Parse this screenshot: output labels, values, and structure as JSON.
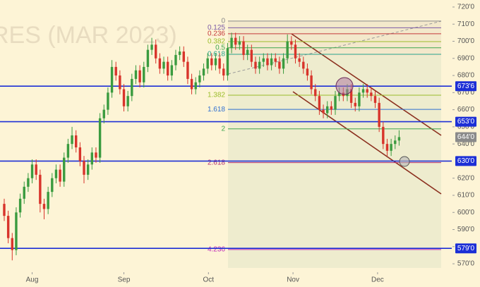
{
  "chart_data": {
    "type": "candlestick",
    "watermark": "RES (MAR 2023)",
    "ylim": [
      565.5,
      724.1
    ],
    "yticks": [
      {
        "value": 720,
        "label": "720'0"
      },
      {
        "value": 710,
        "label": "710'0"
      },
      {
        "value": 700,
        "label": "700'0"
      },
      {
        "value": 690,
        "label": "690'0"
      },
      {
        "value": 680,
        "label": "680'0"
      },
      {
        "value": 670,
        "label": "670'0"
      },
      {
        "value": 660,
        "label": "660'0"
      },
      {
        "value": 650,
        "label": "650'0"
      },
      {
        "value": 640,
        "label": "640'0"
      },
      {
        "value": 620,
        "label": "620'0"
      },
      {
        "value": 610,
        "label": "610'0"
      },
      {
        "value": 600,
        "label": "600'0"
      },
      {
        "value": 590,
        "label": "590'0"
      },
      {
        "value": 580,
        "label": "580'0"
      },
      {
        "value": 570,
        "label": "570'0"
      }
    ],
    "xlim": [
      -1.06,
      112.2
    ],
    "xticks": [
      {
        "value": 7,
        "label": "Aug"
      },
      {
        "value": 30,
        "label": "Sep"
      },
      {
        "value": 51.2,
        "label": "Oct"
      },
      {
        "value": 72.4,
        "label": "Nov"
      },
      {
        "value": 93.6,
        "label": "Dec"
      }
    ],
    "up_color": "#3a9b3f",
    "down_color": "#d8342b",
    "open": [
      605,
      598,
      585,
      578,
      600,
      608,
      615,
      620,
      628,
      622,
      605,
      602,
      612,
      620,
      625,
      618,
      632,
      640,
      645,
      638,
      630,
      622,
      628,
      635,
      632,
      655,
      660,
      670,
      685,
      680,
      672,
      662,
      668,
      678,
      683,
      676,
      685,
      695,
      698,
      690,
      684,
      688,
      680,
      686,
      692,
      694,
      688,
      678,
      672,
      676,
      680,
      684,
      690,
      686,
      690,
      684,
      680,
      696,
      702,
      698,
      700,
      692,
      695,
      688,
      684,
      688,
      690,
      686,
      690,
      688,
      684,
      690,
      700,
      698,
      690,
      688,
      684,
      680,
      672,
      668,
      660,
      658,
      662,
      660,
      668,
      670,
      668,
      672,
      664,
      662,
      670,
      672,
      670,
      668,
      664,
      650,
      640,
      636,
      640,
      642
    ],
    "high": [
      608,
      601,
      588,
      603,
      611,
      618,
      623,
      631,
      631,
      625,
      608,
      615,
      623,
      628,
      628,
      635,
      643,
      650,
      648,
      641,
      633,
      631,
      638,
      638,
      658,
      663,
      673,
      689,
      688,
      683,
      675,
      671,
      681,
      686,
      686,
      688,
      698,
      702,
      701,
      693,
      691,
      691,
      689,
      695,
      697,
      697,
      691,
      681,
      679,
      683,
      687,
      693,
      693,
      693,
      693,
      687,
      699,
      705,
      705,
      703,
      703,
      698,
      698,
      691,
      691,
      693,
      693,
      693,
      693,
      691,
      693,
      704,
      703,
      701,
      693,
      691,
      687,
      683,
      675,
      671,
      663,
      665,
      665,
      671,
      673,
      673,
      675,
      675,
      667,
      673,
      675,
      675,
      673,
      671,
      667,
      653,
      643,
      643,
      645,
      648
    ],
    "low": [
      595,
      582,
      572,
      575,
      597,
      605,
      612,
      617,
      619,
      600,
      596,
      599,
      609,
      617,
      615,
      615,
      629,
      637,
      635,
      627,
      617,
      619,
      625,
      629,
      629,
      652,
      657,
      667,
      677,
      669,
      659,
      659,
      665,
      675,
      673,
      673,
      682,
      692,
      687,
      681,
      681,
      677,
      677,
      683,
      689,
      685,
      675,
      669,
      669,
      673,
      677,
      681,
      683,
      683,
      681,
      677,
      677,
      693,
      695,
      695,
      689,
      689,
      685,
      681,
      681,
      685,
      683,
      683,
      685,
      681,
      681,
      687,
      695,
      687,
      685,
      681,
      677,
      669,
      665,
      657,
      655,
      655,
      657,
      657,
      665,
      665,
      665,
      661,
      659,
      659,
      667,
      667,
      665,
      661,
      647,
      637,
      633,
      633,
      637,
      639
    ],
    "close": [
      598,
      585,
      578,
      600,
      608,
      615,
      620,
      628,
      622,
      605,
      602,
      612,
      620,
      625,
      618,
      632,
      640,
      645,
      638,
      630,
      622,
      628,
      635,
      632,
      655,
      660,
      670,
      685,
      680,
      672,
      662,
      668,
      678,
      683,
      676,
      685,
      695,
      698,
      690,
      684,
      688,
      680,
      686,
      692,
      694,
      688,
      678,
      672,
      676,
      680,
      684,
      690,
      686,
      690,
      684,
      680,
      696,
      702,
      698,
      700,
      692,
      695,
      688,
      684,
      688,
      690,
      686,
      690,
      688,
      684,
      690,
      700,
      698,
      690,
      688,
      684,
      680,
      672,
      668,
      660,
      658,
      662,
      660,
      668,
      670,
      668,
      672,
      664,
      662,
      670,
      672,
      670,
      668,
      664,
      650,
      640,
      636,
      640,
      642,
      644
    ],
    "price_labels": [
      {
        "value": 673.75,
        "label": "673'6",
        "color": "#1c2fd6",
        "line": true
      },
      {
        "value": 653,
        "label": "653'0",
        "color": "#1c2fd6",
        "line": true
      },
      {
        "value": 644,
        "label": "644'0",
        "color": "#8a8a8a",
        "line": false
      },
      {
        "value": 630,
        "label": "630'0",
        "color": "#1c2fd6",
        "line": true
      },
      {
        "value": 579,
        "label": "579'0",
        "color": "#1c2fd6",
        "line": true
      }
    ],
    "fib": {
      "ratios": [
        0,
        0.125,
        0.236,
        0.382,
        0.5,
        0.618,
        1.382,
        1.618,
        2,
        2.618,
        4.236
      ],
      "prices": [
        711.8,
        707.9,
        704.4,
        699.8,
        696.2,
        692.4,
        668.5,
        660.2,
        648.8,
        629.1,
        578.3
      ],
      "colors": [
        "#888888",
        "#7b5aa6",
        "#c4393b",
        "#9bbd2a",
        "#3ea650",
        "#25a38e",
        "#9bbd2a",
        "#2f6fd1",
        "#3ea650",
        "#b2306f",
        "#c02ab8"
      ]
    }
  }
}
